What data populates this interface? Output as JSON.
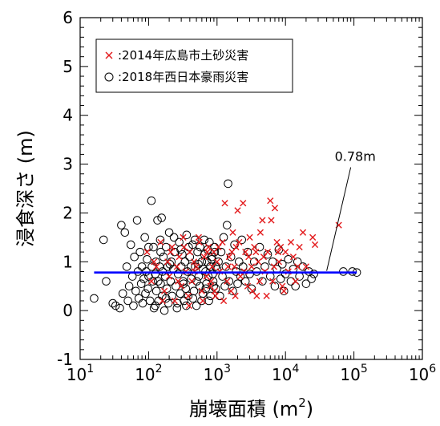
{
  "chart_data": {
    "type": "scatter",
    "xlabel": "崩壊面積 (m",
    "xlabel_sup": "2",
    "xlabel_end": ")",
    "ylabel": "浸食深さ (m)",
    "xscale": "log",
    "xlim": [
      10,
      1000000
    ],
    "ylim": [
      -1,
      6
    ],
    "xticks": [
      10,
      100,
      1000,
      10000,
      100000,
      1000000
    ],
    "xtick_labels": [
      {
        "base": "10",
        "exp": "1"
      },
      {
        "base": "10",
        "exp": "2"
      },
      {
        "base": "10",
        "exp": "3"
      },
      {
        "base": "10",
        "exp": "4"
      },
      {
        "base": "10",
        "exp": "5"
      },
      {
        "base": "10",
        "exp": "6"
      }
    ],
    "yticks": [
      -1,
      0,
      1,
      2,
      3,
      4,
      5,
      6
    ],
    "ytick_labels": [
      "-1",
      "0",
      "1",
      "2",
      "3",
      "4",
      "5",
      "6"
    ],
    "grid": false,
    "legend_position": "top-left",
    "series": [
      {
        "name": ":2014年広島市土砂災害",
        "marker": "x",
        "color": "#e31a1c",
        "points": [
          [
            95,
            1.2
          ],
          [
            110,
            0.6
          ],
          [
            130,
            0.9
          ],
          [
            150,
            1.4
          ],
          [
            170,
            0.4
          ],
          [
            190,
            1.0
          ],
          [
            200,
            0.7
          ],
          [
            220,
            1.3
          ],
          [
            240,
            0.2
          ],
          [
            260,
            0.9
          ],
          [
            280,
            1.1
          ],
          [
            300,
            0.5
          ],
          [
            320,
            1.5
          ],
          [
            350,
            0.8
          ],
          [
            380,
            0.3
          ],
          [
            400,
            1.2
          ],
          [
            430,
            0.6
          ],
          [
            460,
            1.0
          ],
          [
            500,
            0.9
          ],
          [
            550,
            1.4
          ],
          [
            600,
            0.4
          ],
          [
            650,
            1.1
          ],
          [
            700,
            0.7
          ],
          [
            750,
            1.3
          ],
          [
            800,
            0.5
          ],
          [
            850,
            0.9
          ],
          [
            900,
            1.2
          ],
          [
            950,
            0.3
          ],
          [
            1000,
            1.0
          ],
          [
            1100,
            0.8
          ],
          [
            1200,
            1.4
          ],
          [
            1300,
            2.2
          ],
          [
            1400,
            0.6
          ],
          [
            1500,
            1.1
          ],
          [
            1600,
            0.4
          ],
          [
            1700,
            1.6
          ],
          [
            1800,
            0.9
          ],
          [
            1900,
            1.3
          ],
          [
            2000,
            2.05
          ],
          [
            2200,
            0.7
          ],
          [
            2400,
            2.2
          ],
          [
            2600,
            1.2
          ],
          [
            2800,
            0.5
          ],
          [
            3000,
            1.5
          ],
          [
            3200,
            0.9
          ],
          [
            3500,
            1.3
          ],
          [
            3800,
            0.3
          ],
          [
            4000,
            1.0
          ],
          [
            4300,
            1.6
          ],
          [
            4600,
            1.85
          ],
          [
            5000,
            0.8
          ],
          [
            5500,
            1.2
          ],
          [
            6000,
            2.25
          ],
          [
            6200,
            1.85
          ],
          [
            6500,
            0.6
          ],
          [
            7000,
            2.1
          ],
          [
            7500,
            1.4
          ],
          [
            8000,
            1.0
          ],
          [
            8500,
            1.3
          ],
          [
            9000,
            0.5
          ],
          [
            10000,
            1.2
          ],
          [
            11000,
            0.8
          ],
          [
            12000,
            1.4
          ],
          [
            13000,
            1.1
          ],
          [
            14000,
            0.6
          ],
          [
            16000,
            1.3
          ],
          [
            18000,
            1.6
          ],
          [
            20000,
            0.9
          ],
          [
            25000,
            1.5
          ],
          [
            27000,
            1.35
          ],
          [
            60000,
            1.75
          ],
          [
            120,
            1.0
          ],
          [
            160,
            0.2
          ],
          [
            210,
            1.2
          ],
          [
            270,
            0.6
          ],
          [
            330,
            1.3
          ],
          [
            390,
            0.1
          ],
          [
            470,
            0.8
          ],
          [
            540,
            1.5
          ],
          [
            620,
            0.2
          ],
          [
            720,
            1.2
          ],
          [
            820,
            0.6
          ],
          [
            920,
            0.4
          ],
          [
            1050,
            1.3
          ],
          [
            1250,
            0.2
          ],
          [
            1450,
            0.9
          ],
          [
            1650,
            1.2
          ],
          [
            1850,
            0.3
          ],
          [
            2100,
            1.4
          ],
          [
            2500,
            0.8
          ],
          [
            2900,
            1.1
          ],
          [
            3300,
            0.4
          ],
          [
            3700,
            1.2
          ],
          [
            4200,
            0.6
          ],
          [
            4800,
            1.1
          ],
          [
            5300,
            0.3
          ],
          [
            6800,
            0.9
          ],
          [
            7800,
            1.2
          ],
          [
            9500,
            0.4
          ],
          [
            15000,
            0.9
          ]
        ]
      },
      {
        "name": ":2018年西日本豪雨災害",
        "marker": "circle",
        "color": "#000000",
        "points": [
          [
            16,
            0.25
          ],
          [
            22,
            1.45
          ],
          [
            24,
            0.6
          ],
          [
            30,
            0.15
          ],
          [
            33,
            0.1
          ],
          [
            38,
            0.05
          ],
          [
            40,
            1.75
          ],
          [
            42,
            0.35
          ],
          [
            45,
            1.6
          ],
          [
            48,
            0.9
          ],
          [
            50,
            0.2
          ],
          [
            52,
            0.5
          ],
          [
            55,
            1.35
          ],
          [
            58,
            0.7
          ],
          [
            60,
            0.1
          ],
          [
            62,
            1.1
          ],
          [
            65,
            0.4
          ],
          [
            68,
            1.85
          ],
          [
            70,
            0.8
          ],
          [
            72,
            0.25
          ],
          [
            75,
            1.2
          ],
          [
            78,
            0.55
          ],
          [
            80,
            0.9
          ],
          [
            82,
            0.15
          ],
          [
            85,
            0.65
          ],
          [
            88,
            1.5
          ],
          [
            90,
            0.35
          ],
          [
            92,
            0.8
          ],
          [
            95,
            1.05
          ],
          [
            98,
            0.45
          ],
          [
            100,
            0.7
          ],
          [
            105,
            0.2
          ],
          [
            110,
            2.25
          ],
          [
            112,
            0.9
          ],
          [
            115,
            0.6
          ],
          [
            118,
            1.3
          ],
          [
            120,
            0.05
          ],
          [
            125,
            0.75
          ],
          [
            128,
            1.0
          ],
          [
            130,
            0.4
          ],
          [
            135,
            1.85
          ],
          [
            138,
            0.6
          ],
          [
            140,
            0.2
          ],
          [
            145,
            0.9
          ],
          [
            148,
            1.45
          ],
          [
            150,
            0.55
          ],
          [
            155,
            1.9
          ],
          [
            158,
            0.3
          ],
          [
            160,
            0.8
          ],
          [
            165,
            1.1
          ],
          [
            170,
            0.0
          ],
          [
            175,
            0.7
          ],
          [
            180,
            1.3
          ],
          [
            185,
            0.45
          ],
          [
            190,
            0.9
          ],
          [
            195,
            0.15
          ],
          [
            200,
            1.6
          ],
          [
            210,
            0.6
          ],
          [
            215,
            1.0
          ],
          [
            220,
            0.3
          ],
          [
            230,
            0.85
          ],
          [
            240,
            1.2
          ],
          [
            250,
            0.5
          ],
          [
            260,
            0.05
          ],
          [
            270,
            0.75
          ],
          [
            280,
            1.4
          ],
          [
            290,
            0.35
          ],
          [
            300,
            0.9
          ],
          [
            310,
            1.15
          ],
          [
            320,
            0.6
          ],
          [
            330,
            0.2
          ],
          [
            340,
            1.0
          ],
          [
            350,
            0.45
          ],
          [
            360,
            1.55
          ],
          [
            370,
            0.8
          ],
          [
            380,
            0.3
          ],
          [
            400,
            1.1
          ],
          [
            420,
            0.65
          ],
          [
            440,
            1.35
          ],
          [
            460,
            0.4
          ],
          [
            480,
            0.9
          ],
          [
            500,
            0.1
          ],
          [
            520,
            1.2
          ],
          [
            540,
            0.7
          ],
          [
            560,
            0.5
          ],
          [
            600,
            1.0
          ],
          [
            620,
            0.35
          ],
          [
            650,
            1.45
          ],
          [
            680,
            0.8
          ],
          [
            700,
            0.55
          ],
          [
            730,
            1.25
          ],
          [
            760,
            0.2
          ],
          [
            800,
            0.9
          ],
          [
            840,
            1.1
          ],
          [
            880,
            0.6
          ],
          [
            920,
            1.3
          ],
          [
            960,
            0.45
          ],
          [
            1000,
            0.85
          ],
          [
            1050,
            1.0
          ],
          [
            1100,
            0.3
          ],
          [
            1150,
            1.2
          ],
          [
            1200,
            0.7
          ],
          [
            1250,
            1.5
          ],
          [
            1300,
            0.5
          ],
          [
            1350,
            0.9
          ],
          [
            1400,
            1.75
          ],
          [
            1450,
            2.6
          ],
          [
            1500,
            0.6
          ],
          [
            1600,
            1.1
          ],
          [
            1700,
            0.4
          ],
          [
            1800,
            1.35
          ],
          [
            1900,
            0.8
          ],
          [
            2000,
            0.55
          ],
          [
            2100,
            1.0
          ],
          [
            2200,
            0.7
          ],
          [
            2300,
            1.45
          ],
          [
            2400,
            0.9
          ],
          [
            2600,
            0.6
          ],
          [
            2800,
            1.2
          ],
          [
            3000,
            0.75
          ],
          [
            3200,
            0.45
          ],
          [
            3500,
            1.0
          ],
          [
            3800,
            0.8
          ],
          [
            4200,
            1.3
          ],
          [
            4600,
            0.6
          ],
          [
            5000,
            0.9
          ],
          [
            5500,
            1.15
          ],
          [
            6000,
            0.7
          ],
          [
            6500,
            1.0
          ],
          [
            7000,
            0.5
          ],
          [
            7500,
            0.85
          ],
          [
            8000,
            1.25
          ],
          [
            8500,
            0.65
          ],
          [
            9000,
            0.95
          ],
          [
            9500,
            0.4
          ],
          [
            10000,
            0.75
          ],
          [
            11000,
            1.05
          ],
          [
            12000,
            0.6
          ],
          [
            13000,
            0.85
          ],
          [
            14000,
            0.5
          ],
          [
            15000,
            1.0
          ],
          [
            16000,
            0.7
          ],
          [
            18000,
            0.9
          ],
          [
            20000,
            0.55
          ],
          [
            22000,
            0.8
          ],
          [
            24000,
            0.65
          ],
          [
            26000,
            0.75
          ],
          [
            70000,
            0.8
          ],
          [
            95000,
            0.8
          ],
          [
            110000,
            0.78
          ],
          [
            100,
            1.3
          ],
          [
            125,
            0.1
          ],
          [
            150,
            1.2
          ],
          [
            180,
            0.25
          ],
          [
            205,
            0.95
          ],
          [
            235,
            1.5
          ],
          [
            265,
            0.15
          ],
          [
            295,
            1.25
          ],
          [
            325,
            0.55
          ],
          [
            355,
            0.1
          ],
          [
            385,
            1.3
          ],
          [
            415,
            0.9
          ],
          [
            445,
            0.25
          ],
          [
            475,
            1.45
          ],
          [
            505,
            0.6
          ],
          [
            535,
            0.95
          ],
          [
            565,
            1.3
          ],
          [
            595,
            0.2
          ],
          [
            625,
            0.85
          ],
          [
            655,
            1.15
          ],
          [
            685,
            0.45
          ],
          [
            715,
            1.0
          ],
          [
            745,
            0.7
          ],
          [
            775,
            1.4
          ],
          [
            805,
            0.3
          ],
          [
            835,
            1.05
          ],
          [
            865,
            0.75
          ],
          [
            895,
            0.5
          ],
          [
            925,
            1.2
          ],
          [
            955,
            0.9
          ]
        ]
      }
    ],
    "reference_line": {
      "y": 0.78,
      "x_range": [
        16,
        110000
      ],
      "color": "#0000ff"
    },
    "annotation": {
      "text": "0.78m",
      "x": 40000,
      "y": 3.0,
      "target_x": 40000,
      "target_y": 0.78
    }
  }
}
